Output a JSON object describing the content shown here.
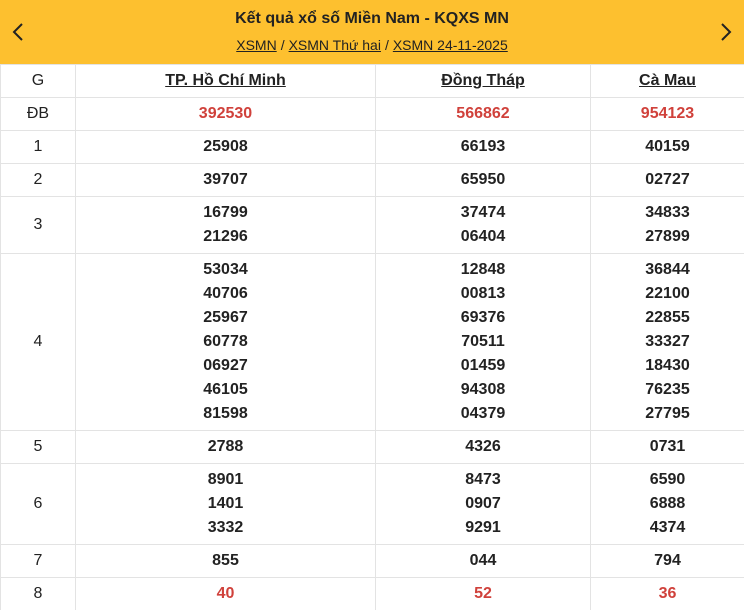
{
  "header": {
    "title": "Kết quả xổ số Miền Nam - KQXS MN",
    "breadcrumb": [
      "XSMN",
      "XSMN Thứ hai",
      "XSMN 24-11-2025"
    ],
    "separator": "/"
  },
  "table": {
    "columns": [
      "G",
      "TP. Hồ Chí Minh",
      "Đồng Tháp",
      "Cà Mau"
    ],
    "rows": [
      {
        "label": "ĐB",
        "highlight": true,
        "cells": [
          [
            "392530"
          ],
          [
            "566862"
          ],
          [
            "954123"
          ]
        ]
      },
      {
        "label": "1",
        "cells": [
          [
            "25908"
          ],
          [
            "66193"
          ],
          [
            "40159"
          ]
        ]
      },
      {
        "label": "2",
        "cells": [
          [
            "39707"
          ],
          [
            "65950"
          ],
          [
            "02727"
          ]
        ]
      },
      {
        "label": "3",
        "cells": [
          [
            "16799",
            "21296"
          ],
          [
            "37474",
            "06404"
          ],
          [
            "34833",
            "27899"
          ]
        ]
      },
      {
        "label": "4",
        "cells": [
          [
            "53034",
            "40706",
            "25967",
            "60778",
            "06927",
            "46105",
            "81598"
          ],
          [
            "12848",
            "00813",
            "69376",
            "70511",
            "01459",
            "94308",
            "04379"
          ],
          [
            "36844",
            "22100",
            "22855",
            "33327",
            "18430",
            "76235",
            "27795"
          ]
        ]
      },
      {
        "label": "5",
        "cells": [
          [
            "2788"
          ],
          [
            "4326"
          ],
          [
            "0731"
          ]
        ]
      },
      {
        "label": "6",
        "cells": [
          [
            "8901",
            "1401",
            "3332"
          ],
          [
            "8473",
            "0907",
            "9291"
          ],
          [
            "6590",
            "6888",
            "4374"
          ]
        ]
      },
      {
        "label": "7",
        "cells": [
          [
            "855"
          ],
          [
            "044"
          ],
          [
            "794"
          ]
        ]
      },
      {
        "label": "8",
        "highlight": true,
        "cells": [
          [
            "40"
          ],
          [
            "52"
          ],
          [
            "36"
          ]
        ]
      }
    ]
  },
  "colors": {
    "header_bg": "#fdc02f",
    "highlight": "#d0413b",
    "border": "#e3e3e3"
  },
  "icons": {
    "prev": "chevron-left-icon",
    "next": "chevron-right-icon"
  }
}
